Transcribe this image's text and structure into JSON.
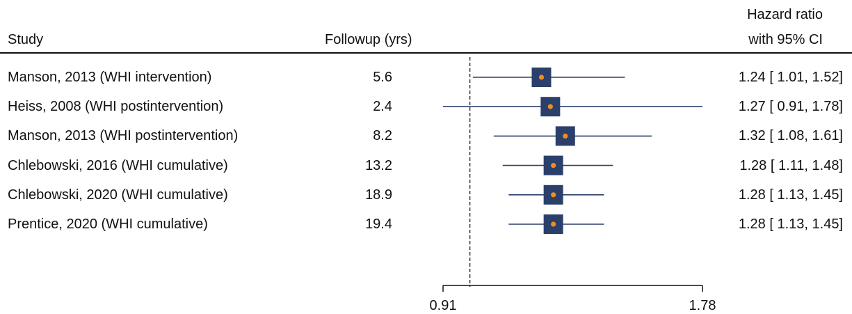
{
  "chart_data": {
    "type": "forest",
    "headers": {
      "study": "Study",
      "followup": "Followup (yrs)",
      "effect_line1": "Hazard ratio",
      "effect_line2": "with 95% CI"
    },
    "rows": [
      {
        "study": "Manson, 2013 (WHI intervention)",
        "followup": "5.6",
        "hr": 1.24,
        "lo": 1.01,
        "hi": 1.52,
        "ci_text": "1.24 [ 1.01,  1.52]"
      },
      {
        "study": "Heiss, 2008 (WHI postintervention)",
        "followup": "2.4",
        "hr": 1.27,
        "lo": 0.91,
        "hi": 1.78,
        "ci_text": "1.27 [ 0.91,  1.78]"
      },
      {
        "study": "Manson, 2013 (WHI postintervention)",
        "followup": "8.2",
        "hr": 1.32,
        "lo": 1.08,
        "hi": 1.61,
        "ci_text": "1.32 [ 1.08,  1.61]"
      },
      {
        "study": "Chlebowski, 2016 (WHI cumulative)",
        "followup": "13.2",
        "hr": 1.28,
        "lo": 1.11,
        "hi": 1.48,
        "ci_text": "1.28 [ 1.11,  1.48]"
      },
      {
        "study": "Chlebowski, 2020 (WHI cumulative)",
        "followup": "18.9",
        "hr": 1.28,
        "lo": 1.13,
        "hi": 1.45,
        "ci_text": "1.28 [ 1.13,  1.45]"
      },
      {
        "study": "Prentice, 2020 (WHI cumulative)",
        "followup": "19.4",
        "hr": 1.28,
        "lo": 1.13,
        "hi": 1.45,
        "ci_text": "1.28 [ 1.13,  1.45]"
      }
    ],
    "x_ticks": [
      0.91,
      1.78
    ],
    "x_tick_labels": [
      "0.91",
      "1.78"
    ],
    "reference_line": 1.0,
    "xlim": [
      0.91,
      1.78
    ],
    "colors": {
      "box": "#2b3f6b",
      "ci_line": "#2b3f6b",
      "point": "#f28c1e",
      "ref_line": "#333333",
      "text": "#111111"
    }
  }
}
